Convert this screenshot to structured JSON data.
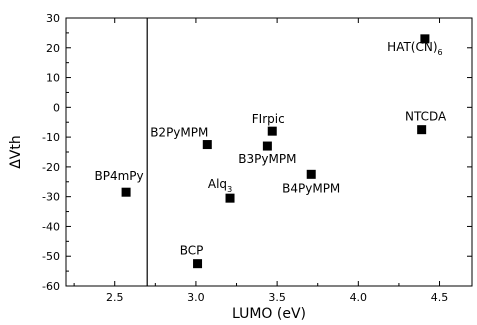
{
  "chart_data": {
    "type": "scatter",
    "title": "",
    "xlabel": "LUMO (eV)",
    "ylabel": "ΔVth",
    "xlim": [
      2.2,
      4.7
    ],
    "ylim": [
      -60,
      30
    ],
    "xticks": [
      2.5,
      3.0,
      3.5,
      4.0,
      4.5
    ],
    "xtick_labels": [
      "2.5",
      "3.0",
      "3.5",
      "4.0",
      "4.5"
    ],
    "yticks": [
      -60,
      -50,
      -40,
      -30,
      -20,
      -10,
      0,
      10,
      20,
      30
    ],
    "ytick_labels": [
      "-60",
      "-50",
      "-40",
      "-30",
      "-20",
      "-10",
      "0",
      "10",
      "20",
      "30"
    ],
    "grid": false,
    "reference_line_x": 2.7,
    "points": [
      {
        "label": "BP4mPy",
        "sub": "",
        "x": 2.57,
        "y": -28.5
      },
      {
        "label": "B2PyMPM",
        "sub": "",
        "x": 3.07,
        "y": -12.5
      },
      {
        "label": "Alq",
        "sub": "3",
        "x": 3.21,
        "y": -30.5
      },
      {
        "label": "BCP",
        "sub": "",
        "x": 3.01,
        "y": -52.5
      },
      {
        "label": "B3PyMPM",
        "sub": "",
        "x": 3.44,
        "y": -13.0
      },
      {
        "label": "FIrpic",
        "sub": "",
        "x": 3.47,
        "y": -8.0
      },
      {
        "label": "B4PyMPM",
        "sub": "",
        "x": 3.71,
        "y": -22.5
      },
      {
        "label": "NTCDA",
        "sub": "",
        "x": 4.39,
        "y": -7.5
      },
      {
        "label": "HAT(CN)",
        "sub": "6",
        "x": 4.41,
        "y": 23.0
      }
    ]
  }
}
